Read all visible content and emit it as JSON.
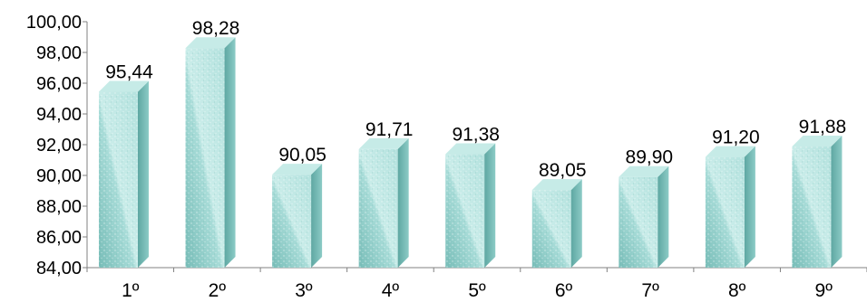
{
  "chart_data": {
    "type": "bar",
    "categories": [
      "1º",
      "2º",
      "3º",
      "4º",
      "5º",
      "6º",
      "7º",
      "8º",
      "9º"
    ],
    "values": [
      95.44,
      98.28,
      90.05,
      91.71,
      91.38,
      89.05,
      89.9,
      91.2,
      91.88
    ],
    "value_labels": [
      "95,44",
      "98,28",
      "90,05",
      "91,71",
      "91,38",
      "89,05",
      "89,90",
      "91,20",
      "91,88"
    ],
    "ylim": [
      84,
      100
    ],
    "y_ticks": [
      {
        "value": 100,
        "label": "100,00"
      },
      {
        "value": 98,
        "label": "98,00"
      },
      {
        "value": 96,
        "label": "96,00"
      },
      {
        "value": 94,
        "label": "94,00"
      },
      {
        "value": 92,
        "label": "92,00"
      },
      {
        "value": 90,
        "label": "90,00"
      },
      {
        "value": 88,
        "label": "88,00"
      },
      {
        "value": 86,
        "label": "86,00"
      },
      {
        "value": 84,
        "label": "84,00"
      }
    ],
    "title": "",
    "xlabel": "",
    "ylabel": "",
    "grid": false,
    "legend": "none",
    "style": "3d-textured-bars",
    "colors": {
      "bar_front": "#a9dcd8",
      "bar_side": "#6fb5b0",
      "bar_top": "#c6ebe7",
      "axis": "#808080"
    }
  }
}
